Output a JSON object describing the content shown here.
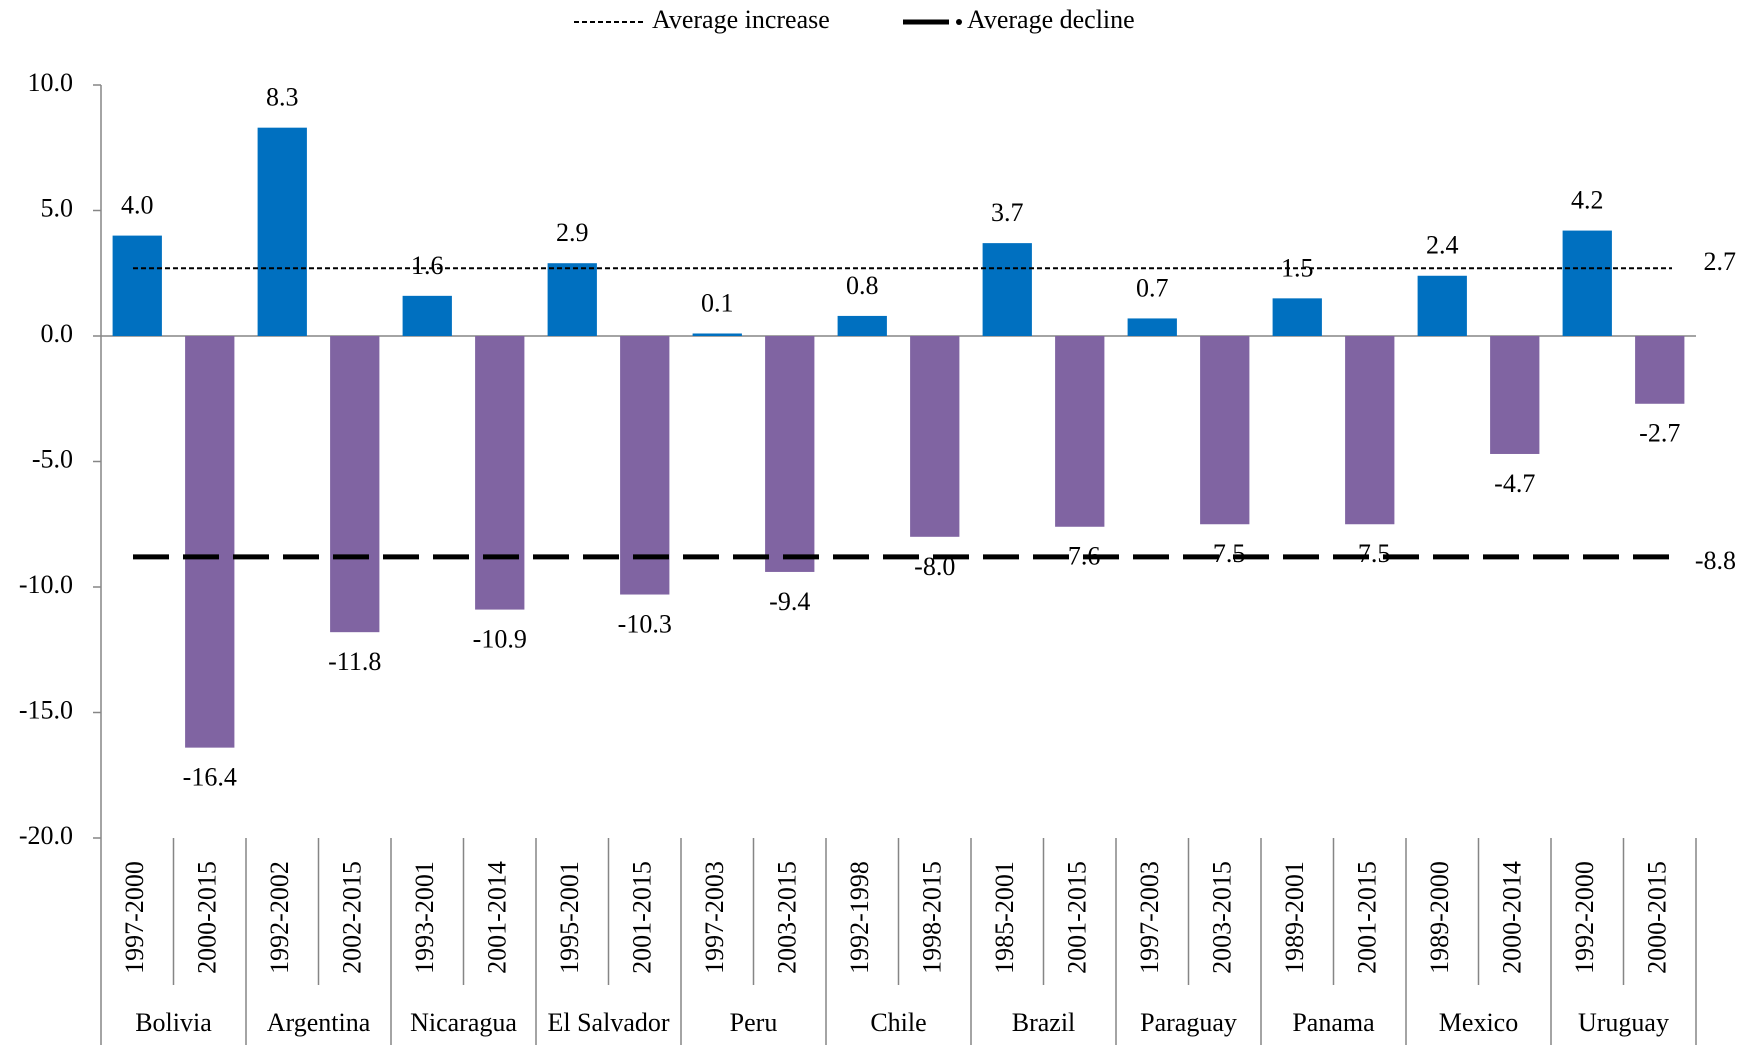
{
  "chart_data": {
    "type": "bar",
    "categories": [
      "1997-2000",
      "2000-2015",
      "1992-2002",
      "2002-2015",
      "1993-2001",
      "2001-2014",
      "1995-2001",
      "2001-2015",
      "1997-2003",
      "2003-2015",
      "1992-1998",
      "1998-2015",
      "1985-2001",
      "2001-2015",
      "1997-2003",
      "2003-2015",
      "1989-2001",
      "2001-2015",
      "1989-2000",
      "2000-2014",
      "1992-2000",
      "2000-2015"
    ],
    "groups": [
      "Bolivia",
      "Argentina",
      "Nicaragua",
      "El Salvador",
      "Peru",
      "Chile",
      "Brazil",
      "Paraguay",
      "Panama",
      "Mexico",
      "Uruguay"
    ],
    "values": [
      4.0,
      -16.4,
      8.3,
      -11.8,
      1.6,
      -10.9,
      2.9,
      -10.3,
      0.1,
      -9.4,
      0.8,
      -8.0,
      3.7,
      -7.6,
      0.7,
      -7.5,
      1.5,
      -7.5,
      2.4,
      -4.7,
      4.2,
      -2.7
    ],
    "value_labels": [
      "4.0",
      "-16.4",
      "8.3",
      "-11.8",
      "1.6",
      "-10.9",
      "2.9",
      "-10.3",
      "0.1",
      "-9.4",
      "0.8",
      "-8.0",
      "3.7",
      "-7.6",
      "0.7",
      "-7.5",
      "1.5",
      "-7.5",
      "2.4",
      "-4.7",
      "4.2",
      "-2.7"
    ],
    "colors": [
      "#0070c0",
      "#8064a2",
      "#0070c0",
      "#8064a2",
      "#0070c0",
      "#8064a2",
      "#0070c0",
      "#8064a2",
      "#0070c0",
      "#8064a2",
      "#0070c0",
      "#8064a2",
      "#0070c0",
      "#8064a2",
      "#0070c0",
      "#8064a2",
      "#0070c0",
      "#8064a2",
      "#0070c0",
      "#8064a2",
      "#0070c0",
      "#8064a2"
    ],
    "reference_lines": [
      {
        "name": "Average increase",
        "value": 2.7,
        "style": "dotted"
      },
      {
        "name": "Average decline",
        "value": -8.8,
        "style": "dashed"
      }
    ],
    "ylim": [
      -20,
      10
    ],
    "yticks": [
      {
        "value": -20,
        "label": "-20.0"
      },
      {
        "value": -15,
        "label": "-15.0"
      },
      {
        "value": -10,
        "label": "-10.0"
      },
      {
        "value": -5,
        "label": "-5.0"
      },
      {
        "value": 0,
        "label": "0.0"
      },
      {
        "value": 5,
        "label": "5.0"
      },
      {
        "value": 10,
        "label": "10.0"
      }
    ],
    "legend": "top"
  }
}
